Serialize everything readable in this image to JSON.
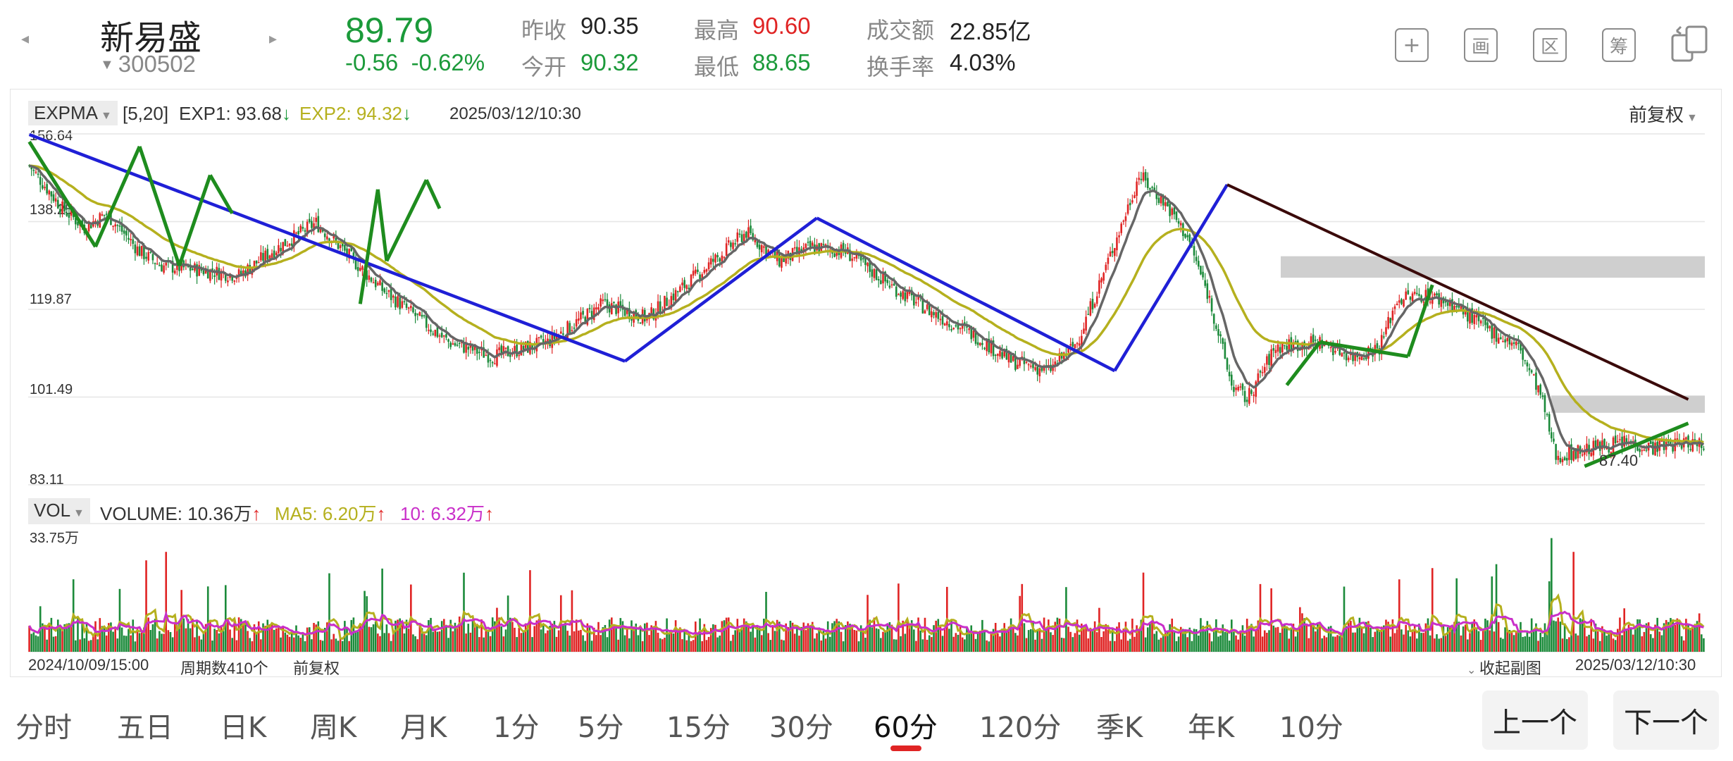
{
  "stock": {
    "name": "新易盛",
    "code": "300502",
    "price": "89.79",
    "change": "-0.56",
    "change_pct": "-0.62%"
  },
  "stats": [
    {
      "label": "昨收",
      "value": "90.35",
      "color": "#222222"
    },
    {
      "label": "今开",
      "value": "90.32",
      "color": "#1b9a3a"
    },
    {
      "label": "最高",
      "value": "90.60",
      "color": "#e02424"
    },
    {
      "label": "最低",
      "value": "88.65",
      "color": "#1b9a3a"
    },
    {
      "label": "成交额",
      "value": "22.85亿",
      "color": "#222222"
    },
    {
      "label": "换手率",
      "value": "4.03%",
      "color": "#222222"
    }
  ],
  "toolbar": {
    "add_icon": "plus-square-icon",
    "draw_label": "画",
    "range_label": "区",
    "chips_label": "筹",
    "device_icon": "switch-device-icon"
  },
  "main_chart": {
    "indicator": "EXPMA",
    "params": "[5,20]",
    "exp1": "EXP1: 93.68",
    "exp2": "EXP2: 94.32",
    "arrow": "↓",
    "datetime": "2025/03/12/10:30",
    "adjust": "前复权",
    "y_labels": [
      "156.64",
      "138.25",
      "119.87",
      "101.49",
      "83.11"
    ],
    "low_label": "87.40"
  },
  "volume_chart": {
    "indicator": "VOL",
    "volume": "VOLUME: 10.36万",
    "ma5": "MA5: 6.20万",
    "ma10": "10: 6.32万",
    "arrow": "↑",
    "max_label": "33.75万"
  },
  "footer": {
    "start": "2024/10/09/15:00",
    "periods": "周期数410个",
    "adjust": "前复权",
    "collapse": "收起副图",
    "end": "2025/03/12/10:30"
  },
  "tabs": [
    "分时",
    "五日",
    "日K",
    "周K",
    "月K",
    "1分",
    "5分",
    "15分",
    "30分",
    "60分",
    "120分",
    "季K",
    "年K",
    "10分"
  ],
  "active_tab": "60分",
  "buttons": {
    "prev": "上一个",
    "next": "下一个"
  },
  "chart_data": {
    "type": "candlestick",
    "ylim": [
      83.11,
      156.64
    ],
    "y_ticks": [
      156.64,
      138.25,
      119.87,
      101.49,
      83.11
    ],
    "colors": {
      "up": "#e02424",
      "down": "#1b8a3a",
      "exp1": "#666666",
      "exp2": "#b5b01e",
      "trend_blue": "#1f1fd6",
      "trend_green": "#1e8c1e",
      "trend_dark": "#3a0a0a"
    },
    "price_path": [
      [
        0,
        150
      ],
      [
        15,
        141
      ],
      [
        25,
        137
      ],
      [
        35,
        140
      ],
      [
        50,
        132
      ],
      [
        60,
        129
      ],
      [
        80,
        128
      ],
      [
        95,
        127
      ],
      [
        110,
        132
      ],
      [
        130,
        138
      ],
      [
        160,
        124
      ],
      [
        190,
        113
      ],
      [
        210,
        110
      ],
      [
        235,
        113
      ],
      [
        260,
        121
      ],
      [
        280,
        118
      ],
      [
        300,
        126
      ],
      [
        325,
        136
      ],
      [
        340,
        130
      ],
      [
        355,
        133
      ],
      [
        370,
        132
      ],
      [
        390,
        125
      ],
      [
        410,
        119
      ],
      [
        430,
        114
      ],
      [
        445,
        109
      ],
      [
        462,
        107
      ],
      [
        475,
        113
      ],
      [
        485,
        125
      ],
      [
        497,
        140
      ],
      [
        503,
        148
      ],
      [
        515,
        142
      ],
      [
        525,
        135
      ],
      [
        535,
        122
      ],
      [
        545,
        104
      ],
      [
        552,
        101
      ],
      [
        565,
        112
      ],
      [
        585,
        113
      ],
      [
        600,
        110
      ],
      [
        612,
        112
      ],
      [
        620,
        122
      ],
      [
        632,
        123
      ],
      [
        645,
        121
      ],
      [
        660,
        116
      ],
      [
        675,
        112
      ],
      [
        685,
        102
      ],
      [
        692,
        89
      ],
      [
        710,
        91
      ],
      [
        725,
        92
      ],
      [
        735,
        91
      ],
      [
        752,
        92
      ]
    ],
    "volume_max": 33.75
  }
}
